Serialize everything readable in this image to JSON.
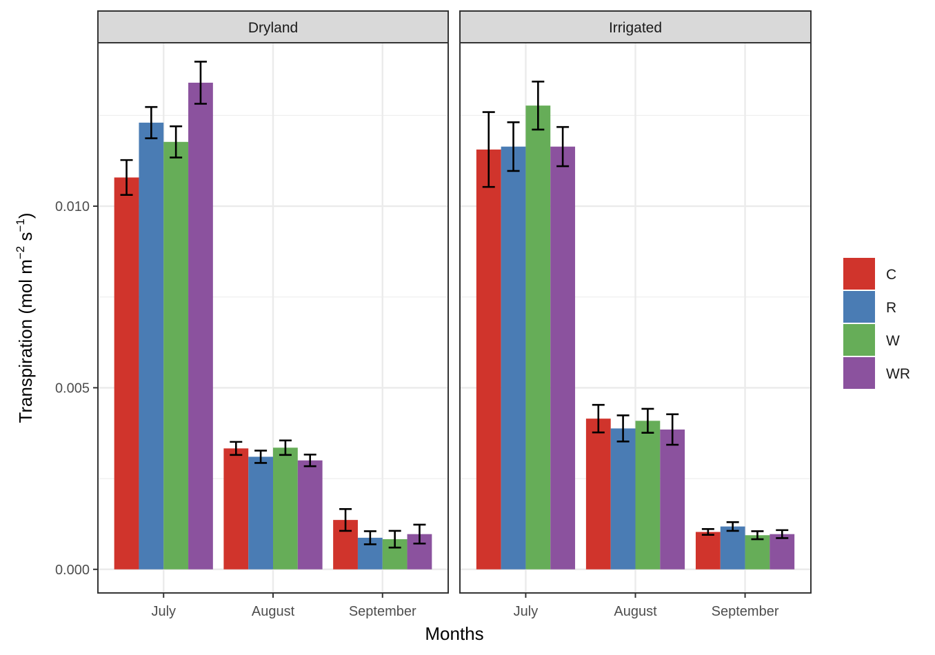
{
  "chart_data": {
    "type": "bar",
    "xlabel": "Months",
    "ylabel": {
      "base": "Transpiration (mol m",
      "sup1": "−2",
      "mid": " s",
      "sup2": "−1",
      "end": ")"
    },
    "ylim": [
      -0.00065,
      0.0145
    ],
    "yticks": [
      0.0,
      0.005,
      0.01
    ],
    "ytick_labels": [
      "0.000",
      "0.005",
      "0.010"
    ],
    "categories": [
      "July",
      "August",
      "September"
    ],
    "legend_position": "right",
    "grid": true,
    "series_colors": {
      "C": "#d0342c",
      "R": "#4a7cb4",
      "W": "#66ad58",
      "WR": "#8b529e"
    },
    "panels": [
      {
        "facet": "Dryland",
        "series": [
          {
            "name": "C",
            "values": [
              0.01079,
              0.00333,
              0.00136
            ],
            "errors": [
              0.00048,
              0.00018,
              0.0003
            ]
          },
          {
            "name": "R",
            "values": [
              0.0123,
              0.0031,
              0.00087
            ],
            "errors": [
              0.00043,
              0.00017,
              0.00018
            ]
          },
          {
            "name": "W",
            "values": [
              0.01177,
              0.00335,
              0.00083
            ],
            "errors": [
              0.00043,
              0.0002,
              0.00023
            ]
          },
          {
            "name": "WR",
            "values": [
              0.0134,
              0.003,
              0.00097
            ],
            "errors": [
              0.00058,
              0.00016,
              0.00026
            ]
          }
        ]
      },
      {
        "facet": "Irrigated",
        "series": [
          {
            "name": "C",
            "values": [
              0.01156,
              0.00415,
              0.00103
            ],
            "errors": [
              0.00103,
              0.00038,
              8e-05
            ]
          },
          {
            "name": "R",
            "values": [
              0.01164,
              0.00388,
              0.00118
            ],
            "errors": [
              0.00067,
              0.00036,
              0.00012
            ]
          },
          {
            "name": "W",
            "values": [
              0.01277,
              0.00409,
              0.00094
            ],
            "errors": [
              0.00066,
              0.00033,
              0.00011
            ]
          },
          {
            "name": "WR",
            "values": [
              0.01164,
              0.00385,
              0.00097
            ],
            "errors": [
              0.00054,
              0.00042,
              0.00011
            ]
          }
        ]
      }
    ]
  }
}
